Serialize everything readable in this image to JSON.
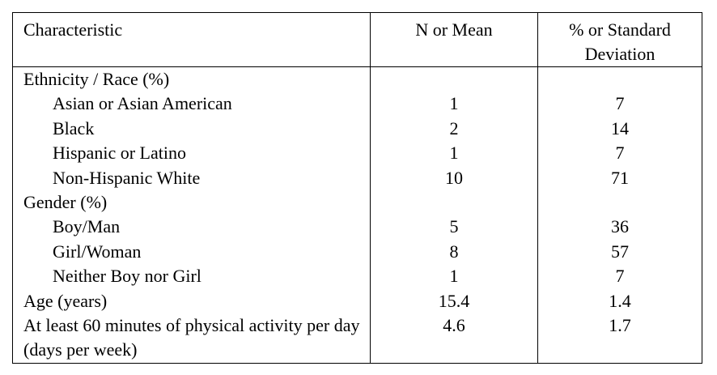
{
  "table": {
    "header": [
      "Characteristic",
      "N or Mean",
      "% or Standard Deviation"
    ],
    "rows": [
      {
        "label": "Ethnicity / Race (%)",
        "items": [
          {
            "label": "Asian or Asian American",
            "n": 1,
            "pct": 7
          },
          {
            "label": "Black",
            "n": 2,
            "pct": 14
          },
          {
            "label": "Hispanic or Latino",
            "n": 1,
            "pct": 7
          },
          {
            "label": "Non-Hispanic White",
            "n": 10,
            "pct": 71
          }
        ]
      },
      {
        "label": "Gender (%)",
        "items": [
          {
            "label": "Boy/Man",
            "n": 5,
            "pct": 36
          },
          {
            "label": "Girl/Woman",
            "n": 8,
            "pct": 57
          },
          {
            "label": "Neither Boy nor Girl",
            "n": 1,
            "pct": 7
          }
        ]
      },
      {
        "label": "Age (years)",
        "n": 15.4,
        "pct": 1.4
      },
      {
        "label": "At least 60 minutes of physical activity per day (days per week)",
        "n": 4.6,
        "pct": 1.7
      }
    ]
  }
}
